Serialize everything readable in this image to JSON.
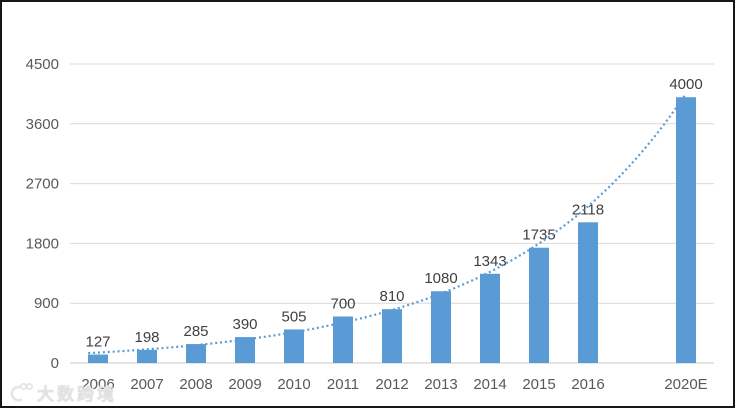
{
  "chart_data": {
    "type": "bar",
    "title": "",
    "categories": [
      "2006",
      "2007",
      "2008",
      "2009",
      "2010",
      "2011",
      "2012",
      "2013",
      "2014",
      "2015",
      "2016",
      "2020E"
    ],
    "values": [
      127,
      198,
      285,
      390,
      505,
      700,
      810,
      1080,
      1343,
      1735,
      2118,
      4000
    ],
    "x_slots": [
      0,
      1,
      2,
      3,
      4,
      5,
      6,
      7,
      8,
      9,
      10,
      12
    ],
    "data_labels": [
      "127",
      "198",
      "285",
      "390",
      "505",
      "700",
      "810",
      "1080",
      "1343",
      "1735",
      "2118",
      "4000"
    ],
    "xlabel": "",
    "ylabel": "",
    "y_ticks": [
      0,
      900,
      1800,
      2700,
      3600,
      4500
    ],
    "ylim": [
      0,
      4500
    ],
    "grid": true,
    "legend": false,
    "trendline": {
      "type": "exponential",
      "style": "dotted"
    }
  },
  "colors": {
    "bar": "#5B9BD5",
    "trendline": "#5B9BD5",
    "gridline": "#D9D9D9",
    "axis_line": "#C9C9C9",
    "tick_text": "#595959",
    "value_label_text": "#404040",
    "background": "#FFFFFF",
    "frame_border": "#161616"
  },
  "watermark": {
    "text": "大数跨境"
  }
}
